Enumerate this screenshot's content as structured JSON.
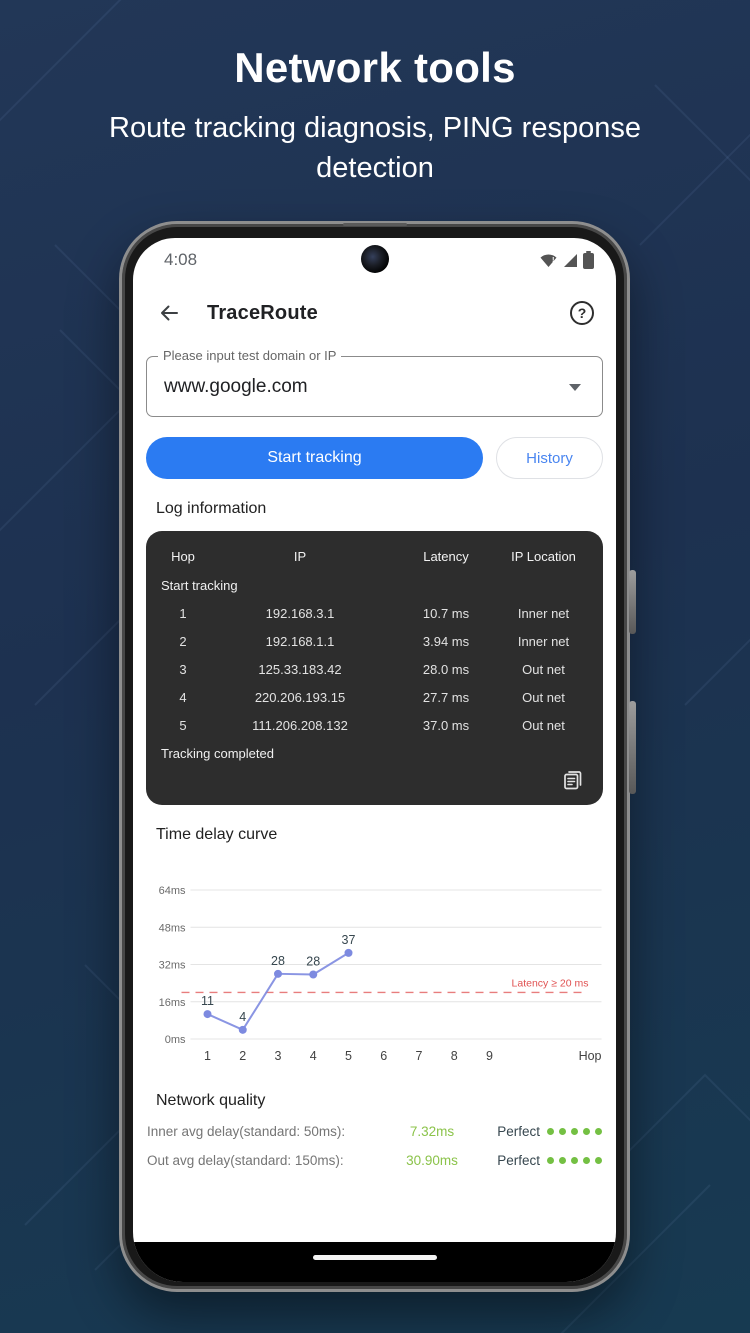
{
  "hero": {
    "title": "Network tools",
    "subtitle": "Route tracking diagnosis, PING response detection"
  },
  "phone": {
    "status_bar": {
      "time": "4:08",
      "icons": [
        "wifi-icon",
        "signal-icon",
        "battery-icon"
      ]
    },
    "app_bar": {
      "title": "TraceRoute",
      "back_icon": "back-arrow-icon",
      "help_glyph": "?"
    },
    "input": {
      "label": "Please input test domain or IP",
      "value": "www.google.com",
      "dropdown_icon": "chevron-down-icon"
    },
    "actions": {
      "start_button": "Start tracking",
      "history_button": "History"
    },
    "log": {
      "title": "Log information",
      "columns": [
        "Hop",
        "IP",
        "Latency",
        "IP Location"
      ],
      "start_message": "Start tracking",
      "rows": [
        {
          "hop": "1",
          "ip": "192.168.3.1",
          "latency": "10.7 ms",
          "location": "Inner net"
        },
        {
          "hop": "2",
          "ip": "192.168.1.1",
          "latency": "3.94 ms",
          "location": "Inner net"
        },
        {
          "hop": "3",
          "ip": "125.33.183.42",
          "latency": "28.0 ms",
          "location": "Out net"
        },
        {
          "hop": "4",
          "ip": "220.206.193.15",
          "latency": "27.7 ms",
          "location": "Out net"
        },
        {
          "hop": "5",
          "ip": "111.206.208.132",
          "latency": "37.0 ms",
          "location": "Out net"
        }
      ],
      "end_message": "Tracking completed",
      "copy_icon": "copy-icon"
    },
    "chart_section_title": "Time delay curve",
    "quality": {
      "title": "Network quality",
      "rows": [
        {
          "label": "Inner avg delay(standard: 50ms):",
          "value": "7.32ms",
          "rating": "Perfect",
          "dots": 5
        },
        {
          "label": "Out avg delay(standard: 150ms):",
          "value": "30.90ms",
          "rating": "Perfect",
          "dots": 5
        }
      ],
      "value_color": "#8bc34a",
      "dot_color": "#74c043"
    }
  },
  "chart_data": {
    "type": "line",
    "title": "Time delay curve",
    "x": [
      1,
      2,
      3,
      4,
      5
    ],
    "values": [
      10.7,
      3.94,
      28.0,
      27.7,
      37.0
    ],
    "point_labels": [
      "11",
      "4",
      "28",
      "28",
      "37"
    ],
    "x_ticks": [
      "1",
      "2",
      "3",
      "4",
      "5",
      "6",
      "7",
      "8",
      "9"
    ],
    "xlabel": "Hop",
    "ylabel": "",
    "y_ticks": [
      "0ms",
      "16ms",
      "32ms",
      "48ms",
      "64ms"
    ],
    "ylim": [
      0,
      64
    ],
    "xlim": [
      1,
      9
    ],
    "grid": true,
    "legend": false,
    "line_color": "#7d8ae0",
    "point_label_color": "#37474f",
    "threshold": {
      "value": 20,
      "label": "Latency ≥ 20 ms",
      "color": "#e05252"
    }
  },
  "colors": {
    "background": "#1d3150",
    "accent_blue": "#2b7bf2",
    "link_blue": "#4a86f0",
    "card_dark": "#2d2d2d",
    "good_green": "#74c043"
  }
}
